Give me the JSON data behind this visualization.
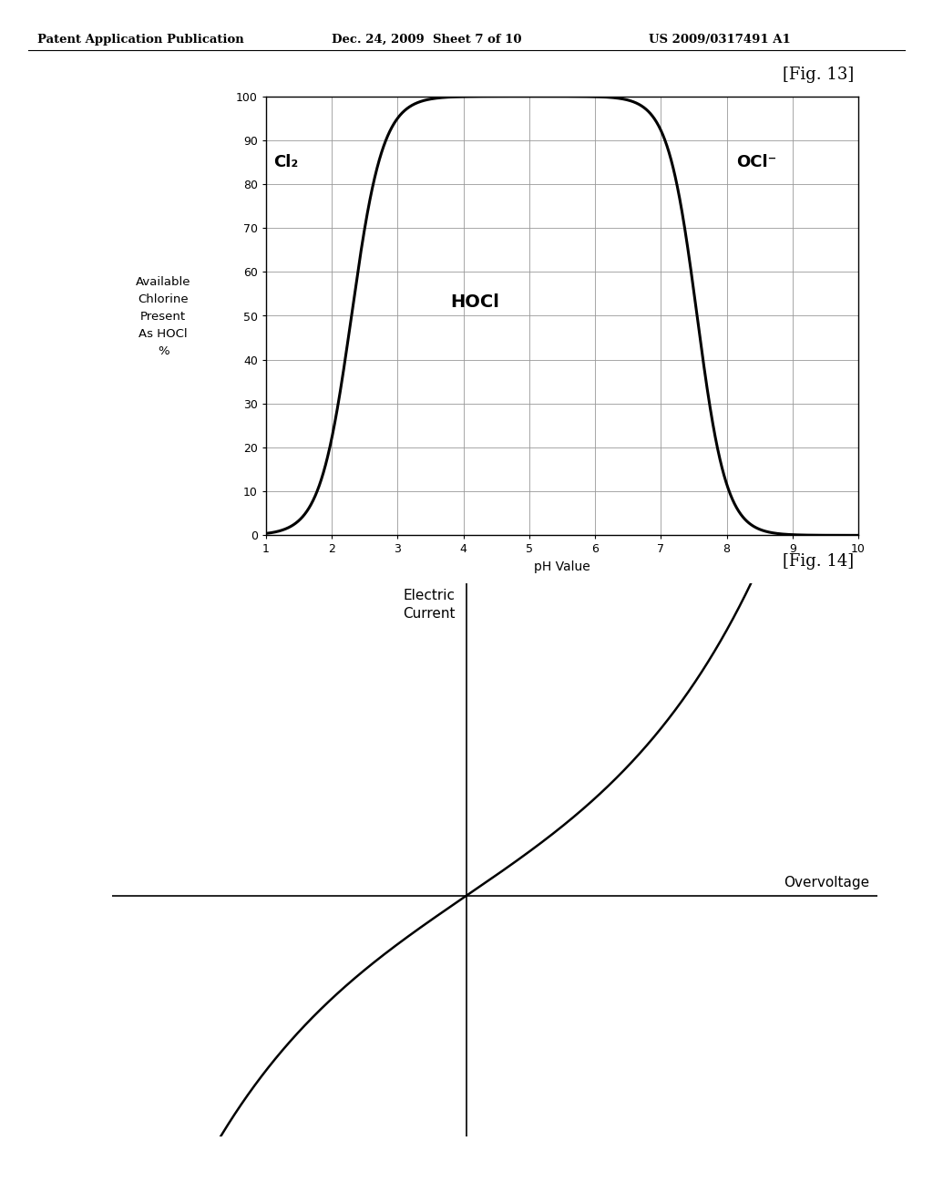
{
  "fig13_title": "[Fig. 13]",
  "fig14_title": "[Fig. 14]",
  "header_left": "Patent Application Publication",
  "header_mid": "Dec. 24, 2009  Sheet 7 of 10",
  "header_right": "US 2009/0317491 A1",
  "fig13_xlabel": "pH Value",
  "fig13_ylabel": "Available\nChlorine\nPresent\nAs HOCl\n%",
  "fig13_xlim": [
    1,
    10
  ],
  "fig13_ylim": [
    0,
    100
  ],
  "fig13_xticks": [
    1,
    2,
    3,
    4,
    5,
    6,
    7,
    8,
    9,
    10
  ],
  "fig13_yticks": [
    0,
    10,
    20,
    30,
    40,
    50,
    60,
    70,
    80,
    90,
    100
  ],
  "fig13_label_cl2": "Cl₂",
  "fig13_label_hocl": "HOCl",
  "fig13_label_ocl": "OCl⁻",
  "fig14_xlabel": "Overvoltage",
  "fig14_ylabel": "Electric\nCurrent",
  "background_color": "#ffffff",
  "line_color": "#000000",
  "grid_color": "#999999",
  "text_color": "#000000"
}
